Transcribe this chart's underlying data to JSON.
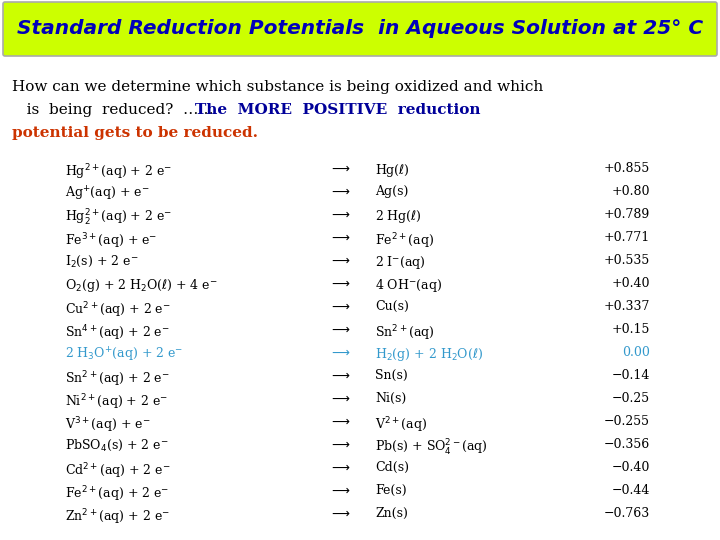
{
  "title": "Standard Reduction Potentials  in Aqueous Solution at 25° C",
  "title_color": "#0000BB",
  "title_bg": "#CCFF00",
  "body_text_color": "#000000",
  "intro_line1": "How can we determine which substance is being oxidized and which",
  "intro_line2_black": "   is  being  reduced?  ……",
  "intro_line2_colored": "The  MORE  POSITIVE  reduction",
  "intro_line3": "potential gets to be reduced.",
  "rows": [
    {
      "left": "Hg$^{2+}$(aq) + 2 e$^{-}$",
      "right": "Hg($\\ell$)",
      "val": "+0.855",
      "color": "black"
    },
    {
      "left": "Ag$^{+}$(aq) + e$^{-}$",
      "right": "Ag(s)",
      "val": "+0.80",
      "color": "black"
    },
    {
      "left": "Hg$_2^{2+}$(aq) + 2 e$^{-}$",
      "right": "2 Hg($\\ell$)",
      "val": "+0.789",
      "color": "black"
    },
    {
      "left": "Fe$^{3+}$(aq) + e$^{-}$",
      "right": "Fe$^{2+}$(aq)",
      "val": "+0.771",
      "color": "black"
    },
    {
      "left": "I$_2$(s) + 2 e$^{-}$",
      "right": "2 I$^{-}$(aq)",
      "val": "+0.535",
      "color": "black"
    },
    {
      "left": "O$_2$(g) + 2 H$_2$O($\\ell$) + 4 e$^{-}$",
      "right": "4 OH$^{-}$(aq)",
      "val": "+0.40",
      "color": "black"
    },
    {
      "left": "Cu$^{2+}$(aq) + 2 e$^{-}$",
      "right": "Cu(s)",
      "val": "+0.337",
      "color": "black"
    },
    {
      "left": "Sn$^{4+}$(aq) + 2 e$^{-}$",
      "right": "Sn$^{2+}$(aq)",
      "val": "+0.15",
      "color": "black"
    },
    {
      "left": "2 H$_3$O$^{+}$(aq) + 2 e$^{-}$",
      "right": "H$_2$(g) + 2 H$_2$O($\\ell$)",
      "val": "0.00",
      "color": "cyan_blue"
    },
    {
      "left": "Sn$^{2+}$(aq) + 2 e$^{-}$",
      "right": "Sn(s)",
      "val": "−0.14",
      "color": "black"
    },
    {
      "left": "Ni$^{2+}$(aq) + 2 e$^{-}$",
      "right": "Ni(s)",
      "val": "−0.25",
      "color": "black"
    },
    {
      "left": "V$^{3+}$(aq) + e$^{-}$",
      "right": "V$^{2+}$(aq)",
      "val": "−0.255",
      "color": "black"
    },
    {
      "left": "PbSO$_4$(s) + 2 e$^{-}$",
      "right": "Pb(s) + SO$_4^{2-}$(aq)",
      "val": "−0.356",
      "color": "black"
    },
    {
      "left": "Cd$^{2+}$(aq) + 2 e$^{-}$",
      "right": "Cd(s)",
      "val": "−0.40",
      "color": "black"
    },
    {
      "left": "Fe$^{2+}$(aq) + 2 e$^{-}$",
      "right": "Fe(s)",
      "val": "−0.44",
      "color": "black"
    },
    {
      "left": "Zn$^{2+}$(aq) + 2 e$^{-}$",
      "right": "Zn(s)",
      "val": "−0.763",
      "color": "black"
    }
  ],
  "cyan_blue": "#3399CC",
  "red_color": "#CC3300",
  "blue_color": "#000099",
  "bg_color": "#FFFFFF",
  "figw": 7.2,
  "figh": 5.4,
  "dpi": 100
}
